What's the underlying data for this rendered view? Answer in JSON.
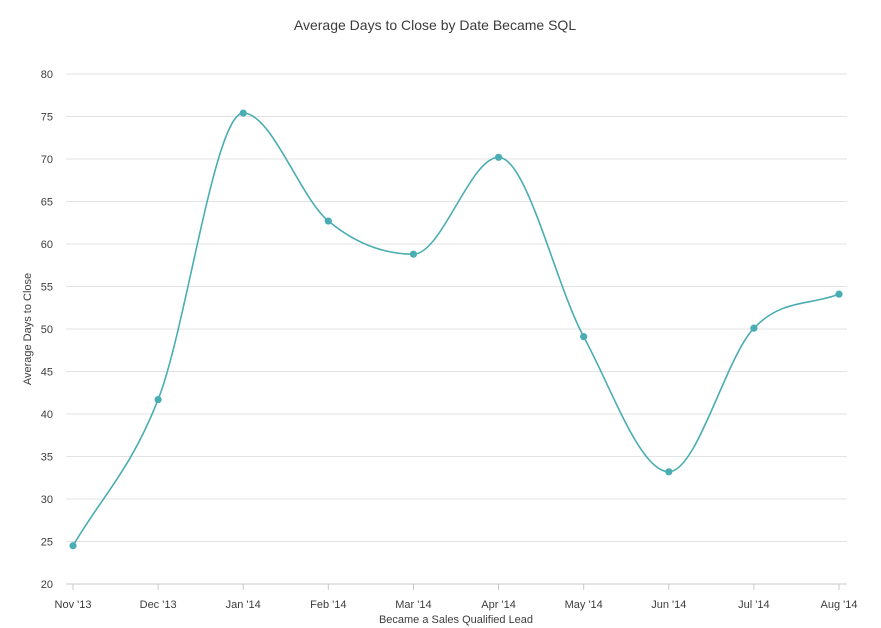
{
  "chart_data": {
    "type": "line",
    "title": "Average Days to Close by Date Became SQL",
    "xlabel": "Became a Sales Qualified Lead",
    "ylabel": "Average Days to Close",
    "categories": [
      "Nov '13",
      "Dec '13",
      "Jan '14",
      "Feb '14",
      "Mar '14",
      "Apr '14",
      "May '14",
      "Jun '14",
      "Jul '14",
      "Aug '14"
    ],
    "series": [
      {
        "values": [
          24.5,
          41.7,
          75.4,
          62.7,
          58.8,
          70.2,
          49.1,
          33.2,
          50.1,
          54.1
        ]
      }
    ],
    "ylim": [
      20,
      80
    ],
    "yticks": [
      "20",
      "25",
      "30",
      "35",
      "40",
      "45",
      "50",
      "55",
      "60",
      "65",
      "70",
      "75",
      "80"
    ],
    "grid": true,
    "legend": "none",
    "line_color": "#4aadb3",
    "grid_color": "#e3e3e3"
  }
}
